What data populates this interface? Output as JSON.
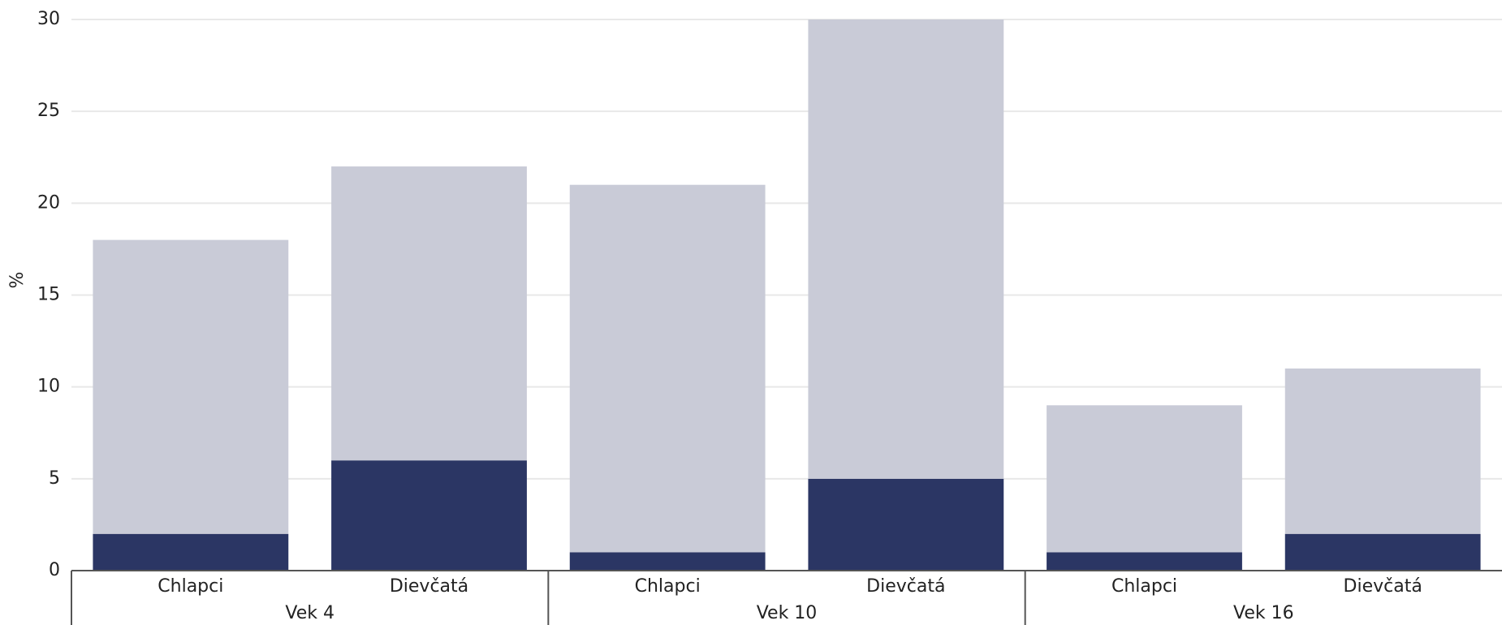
{
  "chart_data": {
    "type": "stacked-bar",
    "y_label": "%",
    "categories": [
      "Chlapci",
      "Dievčatá",
      "Chlapci",
      "Dievčatá",
      "Chlapci",
      "Dievčatá"
    ],
    "groups": [
      "Vek 4",
      "Vek 10",
      "Vek 16"
    ],
    "series": [
      {
        "color": "#2b3664",
        "values": [
          2,
          6,
          1,
          5,
          1,
          2
        ]
      },
      {
        "color": "#c9cbd7",
        "values": [
          16,
          16,
          20,
          25,
          8,
          9
        ]
      }
    ],
    "ylim": [
      0,
      30
    ],
    "yticks": [
      0,
      5,
      10,
      15,
      20,
      25,
      30
    ],
    "grid": true
  }
}
